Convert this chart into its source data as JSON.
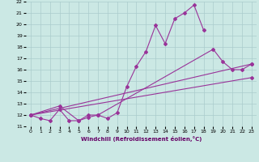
{
  "xlabel": "Windchill (Refroidissement éolien,°C)",
  "bg_color": "#cbe8e4",
  "grid_color": "#aacccc",
  "line_color": "#993399",
  "xlim": [
    -0.5,
    23.5
  ],
  "ylim": [
    11,
    22
  ],
  "xticks": [
    0,
    1,
    2,
    3,
    4,
    5,
    6,
    7,
    8,
    9,
    10,
    11,
    12,
    13,
    14,
    15,
    16,
    17,
    18,
    19,
    20,
    21,
    22,
    23
  ],
  "yticks": [
    11,
    12,
    13,
    14,
    15,
    16,
    17,
    18,
    19,
    20,
    21,
    22
  ],
  "series": [
    {
      "x": [
        0,
        1,
        2,
        3,
        4,
        5,
        6,
        7,
        8,
        9,
        10,
        11,
        12,
        13,
        14,
        15,
        16,
        17,
        18
      ],
      "y": [
        12.0,
        11.7,
        11.5,
        12.5,
        11.5,
        11.5,
        12.0,
        12.0,
        11.7,
        12.2,
        14.5,
        16.3,
        17.6,
        19.9,
        18.3,
        20.5,
        21.0,
        21.7,
        19.5
      ]
    },
    {
      "x": [
        0,
        3,
        5,
        6,
        7,
        19,
        20,
        21,
        22,
        23
      ],
      "y": [
        12.0,
        12.8,
        11.5,
        11.8,
        12.0,
        17.8,
        16.7,
        16.0,
        16.0,
        16.5
      ]
    },
    {
      "x": [
        0,
        23
      ],
      "y": [
        12.0,
        15.3
      ]
    },
    {
      "x": [
        0,
        23
      ],
      "y": [
        12.0,
        16.5
      ]
    }
  ]
}
